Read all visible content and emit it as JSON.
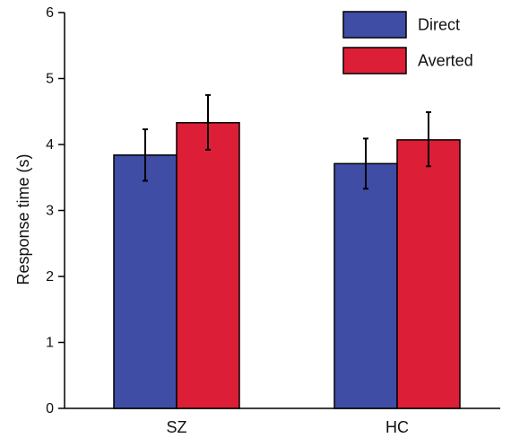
{
  "chart_data": {
    "type": "bar",
    "title": "",
    "xlabel": "",
    "ylabel": "Response time (s)",
    "categories": [
      "SZ",
      "HC"
    ],
    "ylim": [
      0,
      6
    ],
    "yticks": [
      0,
      1,
      2,
      3,
      4,
      5,
      6
    ],
    "grid": false,
    "legend_position": "top-right",
    "series": [
      {
        "name": "Direct",
        "color": "#3f4da5",
        "values": [
          3.84,
          3.71
        ],
        "error_low": [
          3.45,
          3.33
        ],
        "error_high": [
          4.23,
          4.09
        ]
      },
      {
        "name": "Averted",
        "color": "#dc1f36",
        "values": [
          4.33,
          4.07
        ],
        "error_low": [
          3.92,
          3.67
        ],
        "error_high": [
          4.75,
          4.49
        ]
      }
    ]
  }
}
